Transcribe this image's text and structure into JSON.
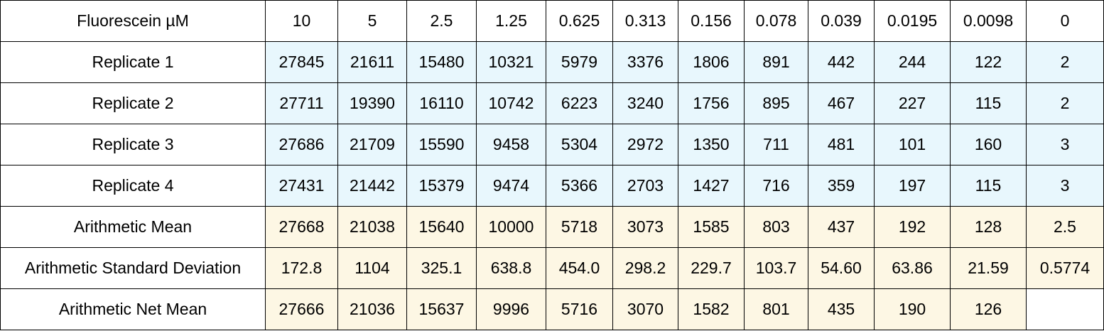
{
  "table": {
    "header": {
      "label": "Fluorescein µM",
      "values": [
        "10",
        "5",
        "2.5",
        "1.25",
        "0.625",
        "0.313",
        "0.156",
        "0.078",
        "0.039",
        "0.0195",
        "0.0098",
        "0"
      ]
    },
    "replicates": [
      {
        "label": "Replicate 1",
        "values": [
          "27845",
          "21611",
          "15480",
          "10321",
          "5979",
          "3376",
          "1806",
          "891",
          "442",
          "244",
          "122",
          "2"
        ]
      },
      {
        "label": "Replicate 2",
        "values": [
          "27711",
          "19390",
          "16110",
          "10742",
          "6223",
          "3240",
          "1756",
          "895",
          "467",
          "227",
          "115",
          "2"
        ]
      },
      {
        "label": "Replicate 3",
        "values": [
          "27686",
          "21709",
          "15590",
          "9458",
          "5304",
          "2972",
          "1350",
          "711",
          "481",
          "101",
          "160",
          "3"
        ]
      },
      {
        "label": "Replicate 4",
        "values": [
          "27431",
          "21442",
          "15379",
          "9474",
          "5366",
          "2703",
          "1427",
          "716",
          "359",
          "197",
          "115",
          "3"
        ]
      }
    ],
    "statistics": [
      {
        "label": "Arithmetic Mean",
        "values": [
          "27668",
          "21038",
          "15640",
          "10000",
          "5718",
          "3073",
          "1585",
          "803",
          "437",
          "192",
          "128",
          "2.5"
        ]
      },
      {
        "label": "Arithmetic Standard Deviation",
        "values": [
          "172.8",
          "1104",
          "325.1",
          "638.8",
          "454.0",
          "298.2",
          "229.7",
          "103.7",
          "54.60",
          "63.86",
          "21.59",
          "0.5774"
        ]
      },
      {
        "label": "Arithmetic Net Mean",
        "values": [
          "27666",
          "21036",
          "15637",
          "9996",
          "5716",
          "3070",
          "1582",
          "801",
          "435",
          "190",
          "126",
          ""
        ]
      }
    ]
  },
  "colors": {
    "replicate_fill": "#e8f7fd",
    "statistic_fill": "#fdf7e4",
    "border": "#000000"
  }
}
